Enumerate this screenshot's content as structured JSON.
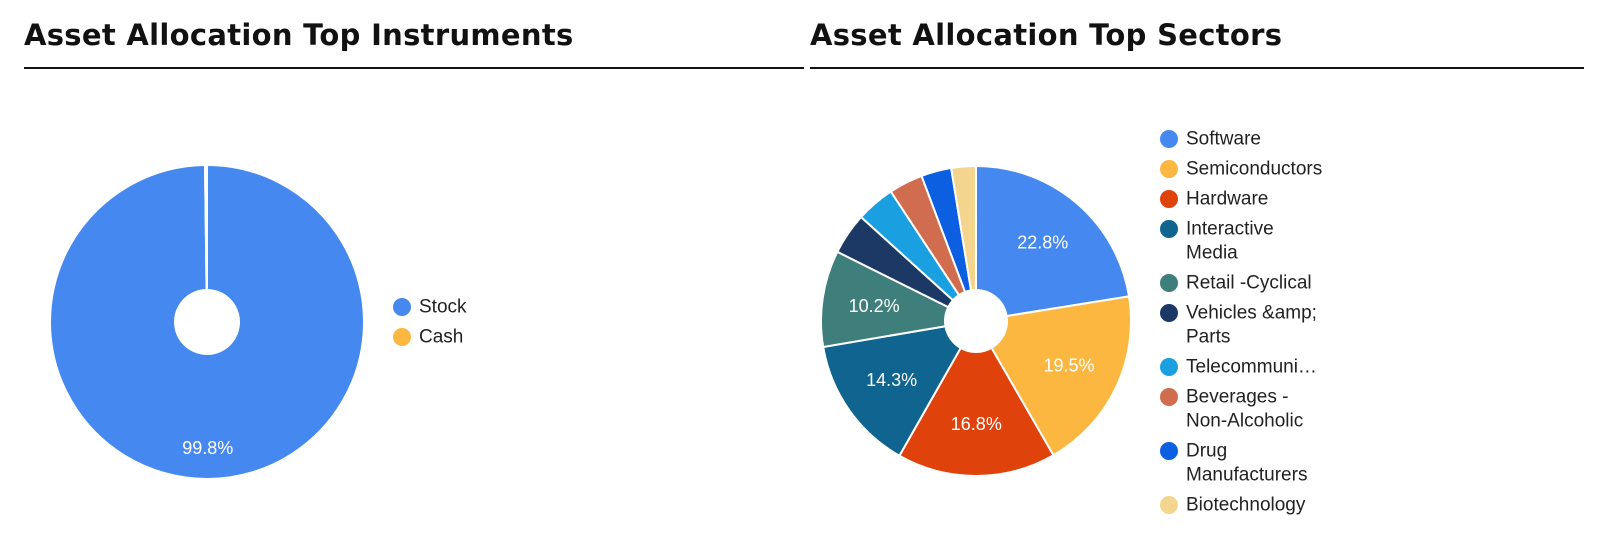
{
  "panels": {
    "instruments": {
      "title": "Asset Allocation Top Instruments"
    },
    "sectors": {
      "title": "Asset Allocation Top Sectors"
    }
  },
  "chart_data": [
    {
      "type": "pie",
      "donut": true,
      "title": "Asset Allocation Top Instruments",
      "legend_position": "right",
      "categories": [
        "Stock",
        "Cash"
      ],
      "values": [
        99.8,
        0.2
      ],
      "labels": [
        "99.8%",
        ""
      ],
      "colors": [
        "#4589F0",
        "#FBB740"
      ]
    },
    {
      "type": "pie",
      "donut": true,
      "title": "Asset Allocation Top Sectors",
      "legend_position": "right",
      "categories": [
        "Software",
        "Semiconductors",
        "Hardware",
        "Interactive Media",
        "Retail -Cyclical",
        "Vehicles &amp; Parts",
        "Telecommuni…",
        "Beverages - Non-Alcoholic",
        "Drug Manufacturers",
        "Biotechnology"
      ],
      "legend_lines": [
        [
          "Software"
        ],
        [
          "Semiconductors"
        ],
        [
          "Hardware"
        ],
        [
          "Interactive",
          "Media"
        ],
        [
          "Retail -Cyclical"
        ],
        [
          "Vehicles &amp;",
          "Parts"
        ],
        [
          "Telecommuni…"
        ],
        [
          "Beverages -",
          "Non-Alcoholic"
        ],
        [
          "Drug",
          "Manufacturers"
        ],
        [
          "Biotechnology"
        ]
      ],
      "values": [
        22.8,
        19.5,
        16.8,
        14.3,
        10.2,
        4.4,
        4.1,
        3.6,
        3.2,
        2.6
      ],
      "labels": [
        "22.8%",
        "19.5%",
        "16.8%",
        "14.3%",
        "10.2%",
        "",
        "",
        "",
        "",
        ""
      ],
      "colors": [
        "#4589F0",
        "#FBB740",
        "#E0420C",
        "#0F6490",
        "#3E7E7B",
        "#1C3966",
        "#1AA0E0",
        "#D06D4F",
        "#0C5FE0",
        "#F4D58E"
      ]
    }
  ]
}
